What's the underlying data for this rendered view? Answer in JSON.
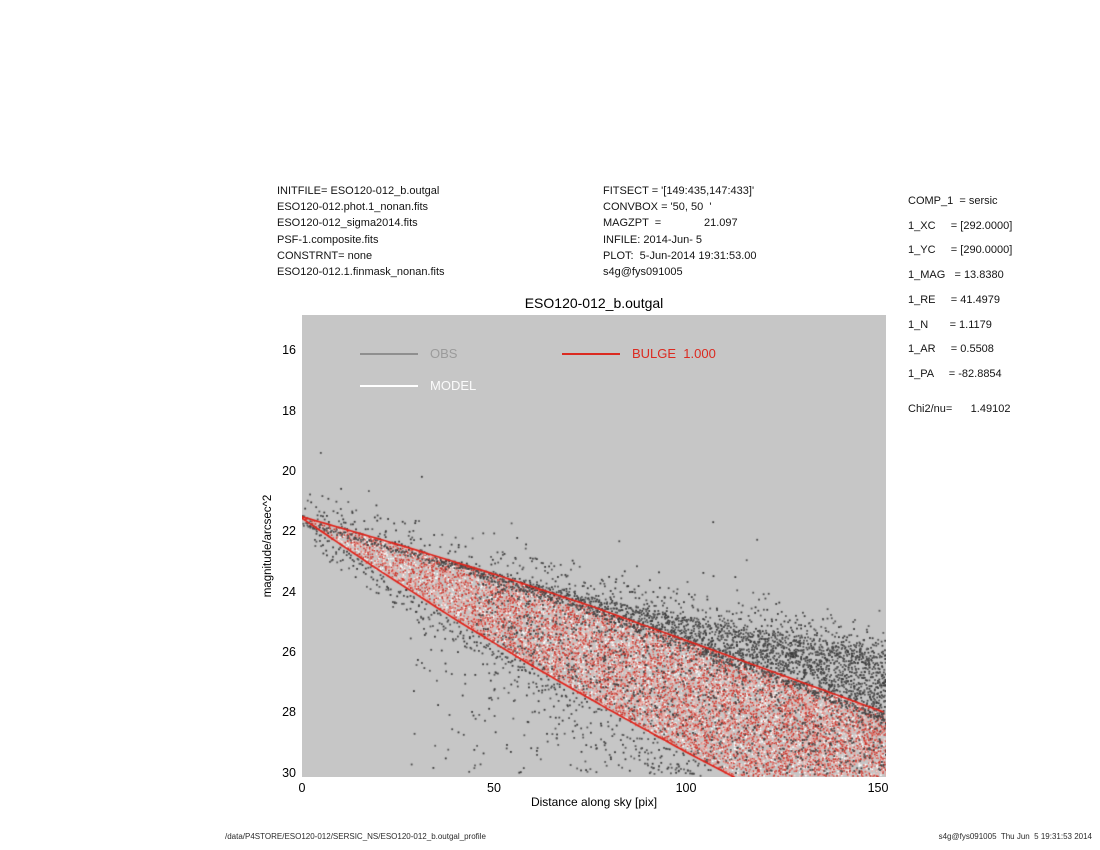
{
  "header": {
    "left_lines": [
      "INITFILE= ESO120-012_b.outgal",
      "ESO120-012.phot.1_nonan.fits",
      "ESO120-012_sigma2014.fits",
      "PSF-1.composite.fits",
      "CONSTRNT= none",
      "ESO120-012.1.finmask_nonan.fits"
    ],
    "mid_lines": [
      "FITSECT = '[149:435,147:433]'",
      "CONVBOX = '50, 50  '",
      "MAGZPT  =              21.097",
      "INFILE: 2014-Jun- 5",
      "PLOT:  5-Jun-2014 19:31:53.00",
      "s4g@fys091005"
    ],
    "right_lines": [
      "COMP_1  = sersic",
      "1_XC     = [292.0000]",
      "1_YC     = [290.0000]",
      "1_MAG   = 13.8380",
      "1_RE     = 41.4979",
      "1_N       = 1.1179",
      "1_AR     = 0.5508",
      "1_PA     = -82.8854"
    ],
    "chi2_line": "Chi2/nu=      1.49102"
  },
  "plot": {
    "title": "ESO120-012_b.outgal",
    "bg_color": "#c6c6c6",
    "legend": [
      {
        "label": "OBS",
        "text_color": "#9b9b9b",
        "line_color": "#8f8f8f"
      },
      {
        "label": "MODEL",
        "text_color": "#fbfbfb",
        "line_color": "#ffffff"
      },
      {
        "label": "BULGE  1.000",
        "text_color": "#db2a20",
        "line_color": "#db2a20"
      }
    ]
  },
  "chart_data": {
    "type": "scatter",
    "title": "ESO120-012_b.outgal",
    "xlabel": "Distance along sky [pix]",
    "ylabel": "magnitude/arcsec^2",
    "x_ticks": [
      0,
      50,
      100,
      150
    ],
    "y_ticks": [
      16,
      18,
      20,
      22,
      24,
      26,
      28,
      30
    ],
    "xlim": [
      0,
      152.08
    ],
    "ylim": [
      14.81,
      30.13
    ],
    "y_axis_inverted": true,
    "grid": false,
    "apex": [
      0,
      21.5
    ],
    "series": [
      {
        "name": "OBS",
        "marker_color": "#454545",
        "description": "observed pixel surface brightness; dense band hugging the model wedge, spreading to ~2 mag above the bulge upper edge at large radii, with sparse scatter below the wedge and mixed specks inside it",
        "upper_envelope": [
          [
            0,
            21.6
          ],
          [
            25,
            22.5
          ],
          [
            50,
            23.3
          ],
          [
            75,
            24.1
          ],
          [
            100,
            24.8
          ],
          [
            125,
            25.35
          ],
          [
            152,
            25.95
          ]
        ]
      },
      {
        "name": "MODEL",
        "marker_color": "#ffffff",
        "description": "total model pixels; white speckle interleaved with the red bulge wedge"
      },
      {
        "name": "BULGE 1.000",
        "marker_color": "#d93025",
        "description": "sersic bulge model pixels; dense red/pink dithered wedge from the apex, bounded by bright red major/minor-axis edges, clipped at mag 30",
        "upper_edge": [
          [
            0,
            21.5
          ],
          [
            25,
            22.42
          ],
          [
            50,
            23.4
          ],
          [
            75,
            24.45
          ],
          [
            100,
            25.6
          ],
          [
            125,
            26.75
          ],
          [
            152,
            28.0
          ]
        ],
        "lower_edge": [
          [
            0,
            21.55
          ],
          [
            20,
            23.27
          ],
          [
            40,
            24.91
          ],
          [
            60,
            26.45
          ],
          [
            80,
            27.9
          ],
          [
            100,
            29.3
          ],
          [
            115,
            30.3
          ],
          [
            152,
            33.0
          ]
        ]
      }
    ],
    "colors": {
      "red_palette": [
        "#cf352b",
        "#e2685e",
        "#efaaa4",
        "#ffffff",
        "#f6d6d2"
      ],
      "dark_palette": [
        "#3a3a3a",
        "#4a4a4a",
        "#585858"
      ],
      "edge_line": "#e02219"
    }
  },
  "footer": {
    "left": "/data/P4STORE/ESO120-012/SERSIC_NS/ESO120-012_b.outgal_profile",
    "right": "s4g@fys091005  Thu Jun  5 19:31:53 2014"
  }
}
